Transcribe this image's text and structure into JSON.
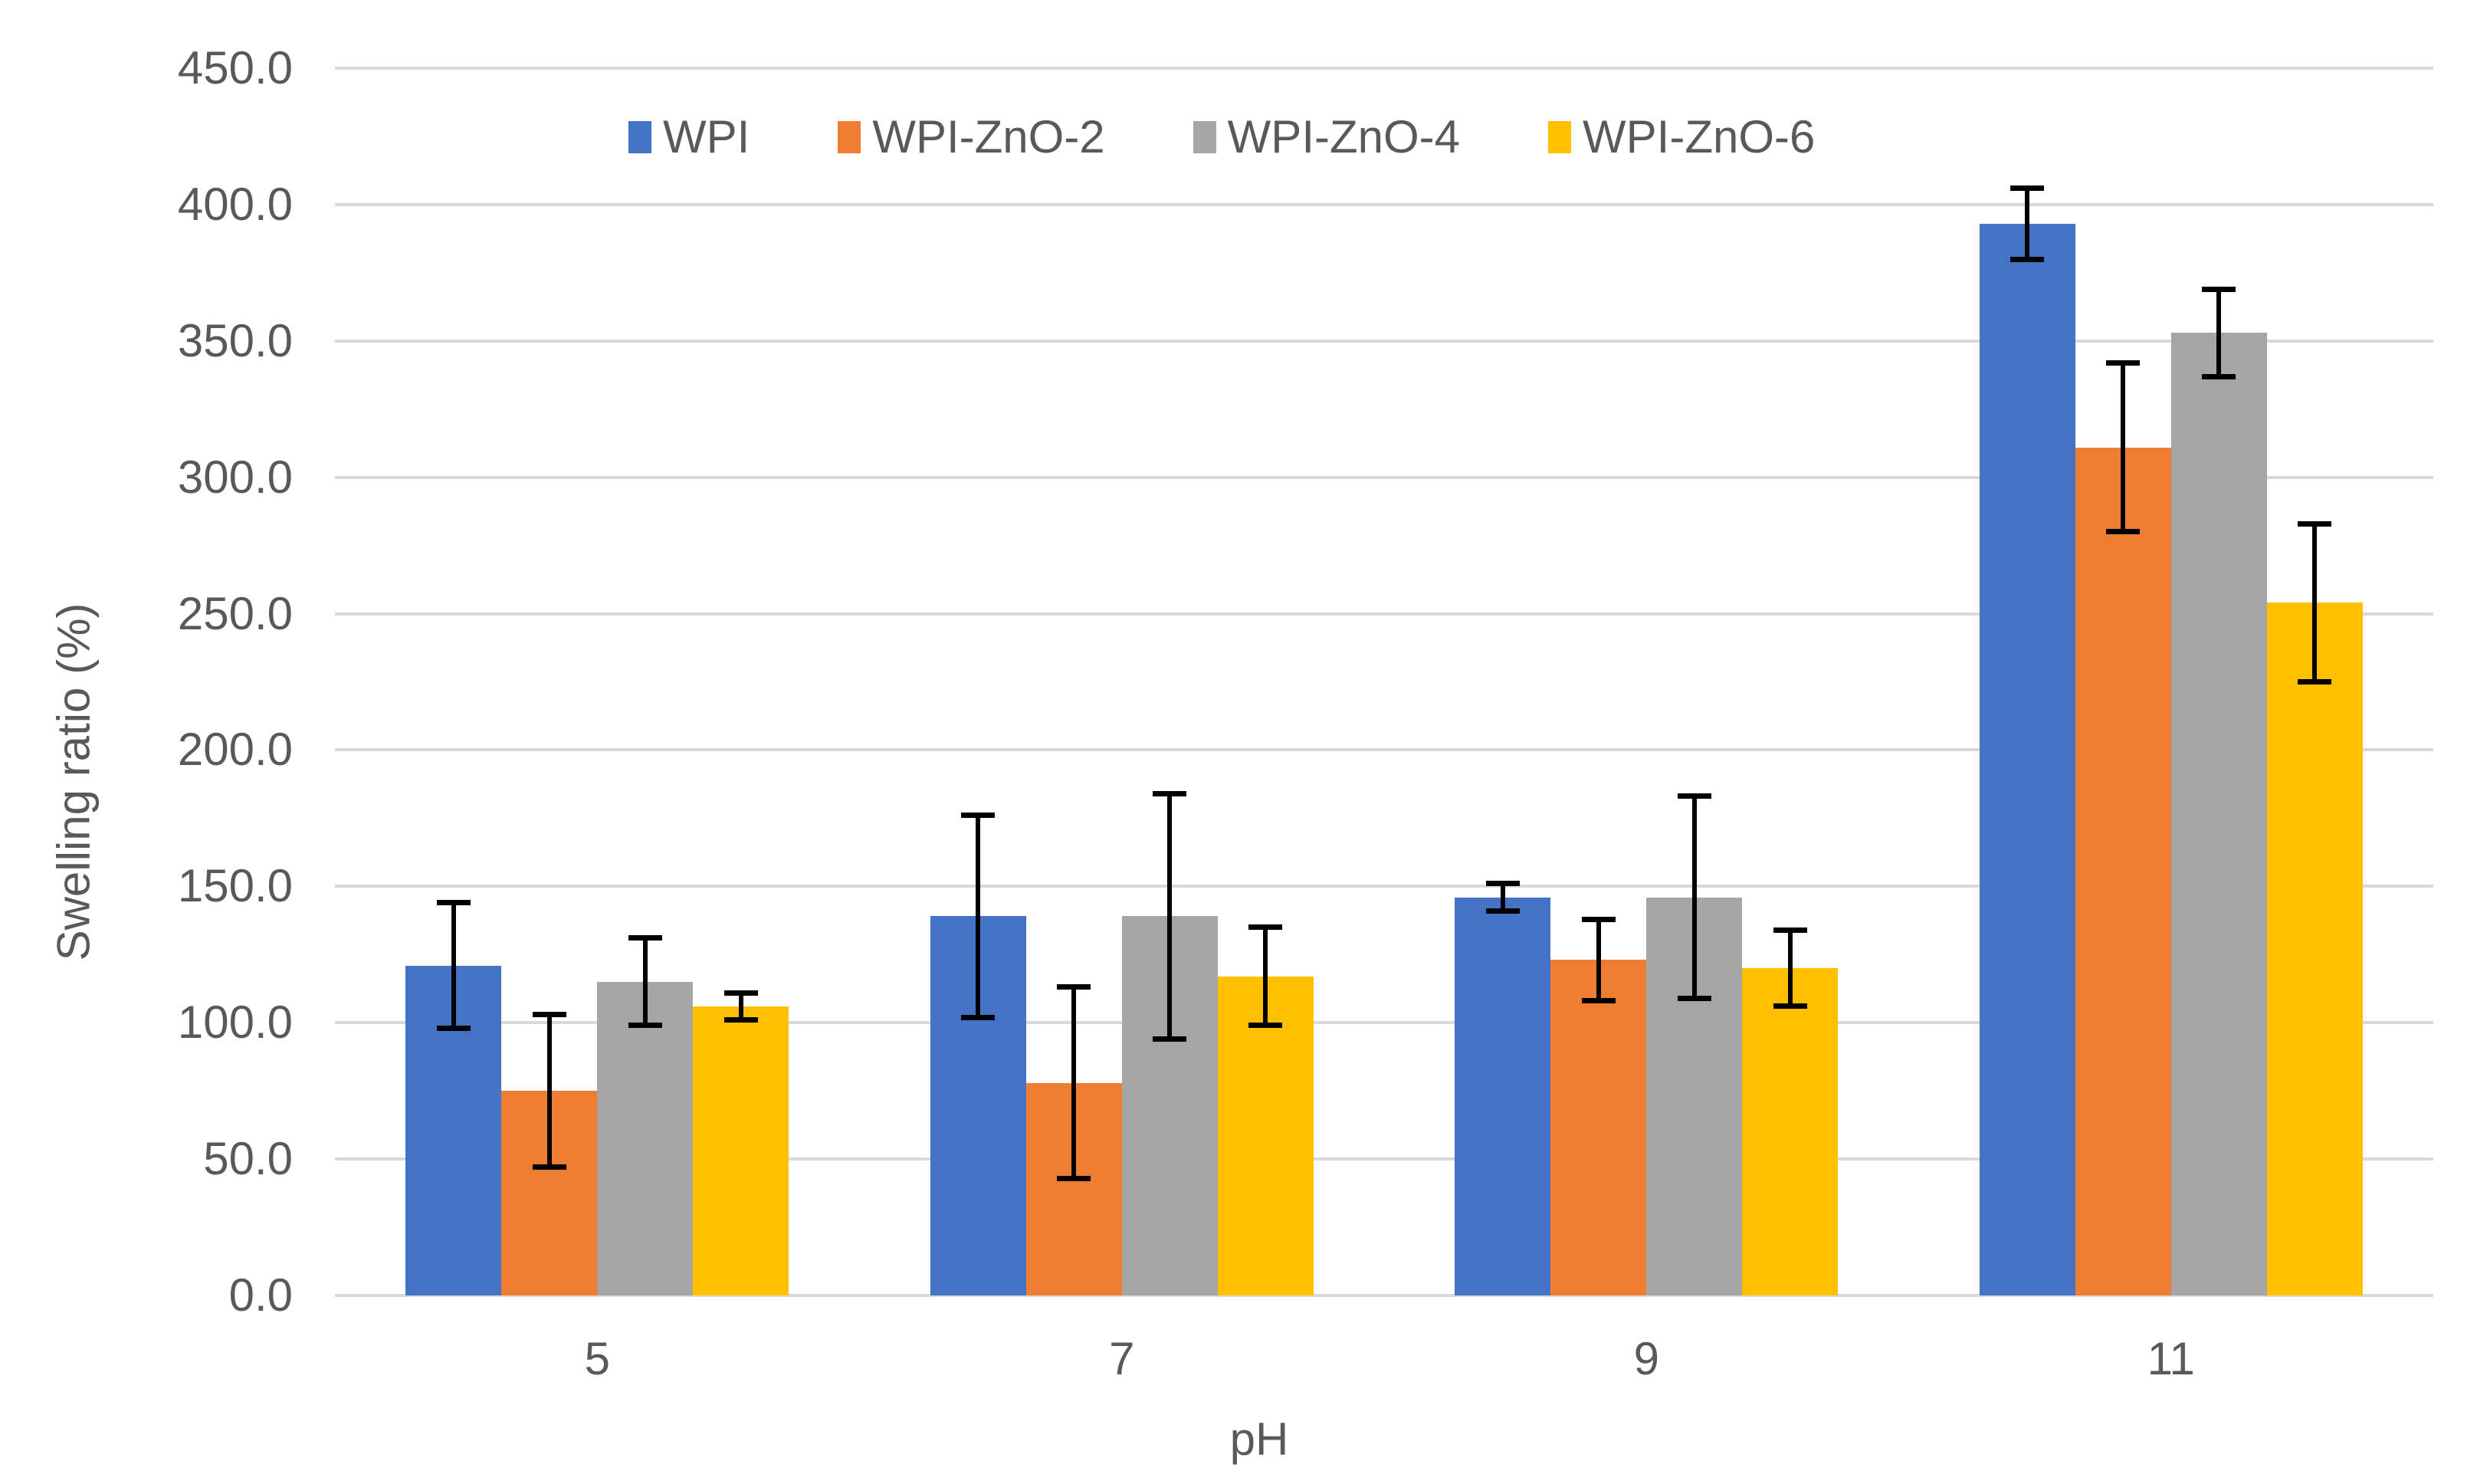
{
  "chart_data": {
    "type": "bar",
    "title": "",
    "xlabel": "pH",
    "ylabel": "Swelling ratio (%)",
    "categories": [
      "5",
      "7",
      "9",
      "11"
    ],
    "series": [
      {
        "name": "WPI",
        "color": "#4472C4",
        "values": [
          121,
          139,
          146,
          393
        ],
        "errors": [
          23,
          37,
          5,
          13
        ]
      },
      {
        "name": "WPI-ZnO-2",
        "color": "#ED7D31",
        "values": [
          75,
          78,
          123,
          311
        ],
        "errors": [
          28,
          35,
          15,
          31
        ]
      },
      {
        "name": "WPI-ZnO-4",
        "color": "#A5A5A5",
        "values": [
          115,
          139,
          146,
          353
        ],
        "errors": [
          16,
          45,
          37,
          16
        ]
      },
      {
        "name": "WPI-ZnO-6",
        "color": "#FFC000",
        "values": [
          106,
          117,
          120,
          254
        ],
        "errors": [
          5,
          18,
          14,
          29
        ]
      }
    ],
    "ylim": [
      0,
      450
    ],
    "ytick_step": 50,
    "yticks": [
      "450.0",
      "400.0",
      "350.0",
      "300.0",
      "250.0",
      "200.0",
      "150.0",
      "100.0",
      "50.0",
      "0.0"
    ],
    "grid": true,
    "error_bars": true,
    "legend_position": "top",
    "styles": {
      "background": "#FFFFFF",
      "gridline_color": "#D9D9D9",
      "axis_text_color": "#595959",
      "error_bar_color": "#000000"
    }
  }
}
